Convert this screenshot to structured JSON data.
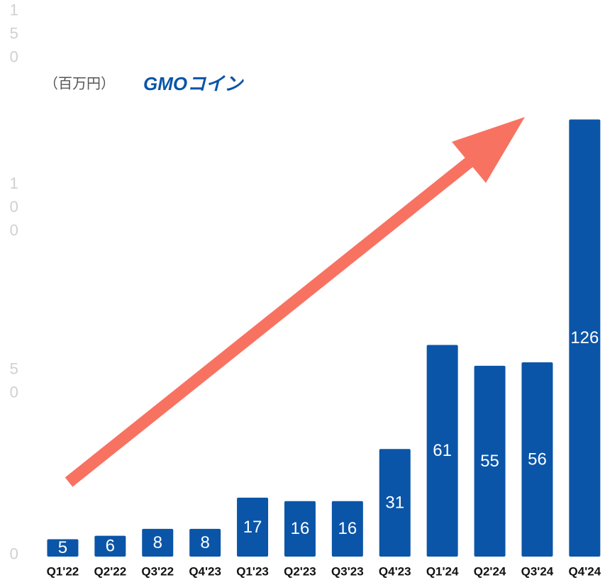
{
  "chart_data": {
    "type": "bar",
    "unit_label": "（百万円）",
    "logo": "GMOコイン",
    "categories": [
      "Q1'22",
      "Q2'22",
      "Q3'22",
      "Q4'23",
      "Q1'23",
      "Q2'23",
      "Q3'23",
      "Q4'23",
      "Q1'24",
      "Q2'24",
      "Q3'24",
      "Q4'24"
    ],
    "values": [
      5,
      6,
      8,
      8,
      17,
      16,
      16,
      31,
      61,
      55,
      56,
      126
    ],
    "color": "#0a55a8",
    "ylim": [
      0,
      150
    ],
    "yticks": [
      0,
      50,
      100,
      150
    ],
    "grid": false
  }
}
